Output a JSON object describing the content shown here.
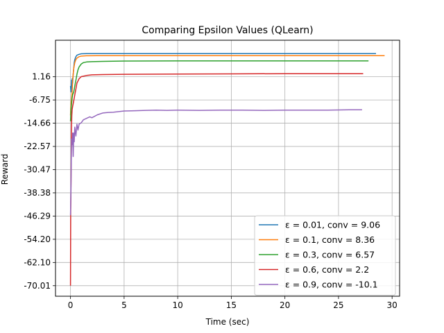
{
  "chart_data": {
    "type": "line",
    "title": "Comparing Epsilon Values (QLearn)",
    "xlabel": "Time (sec)",
    "ylabel": "Reward",
    "xlim": [
      -1.4,
      30.7
    ],
    "ylim": [
      -73.6,
      13.6
    ],
    "x_ticks": [
      0,
      5,
      10,
      15,
      20,
      25,
      30
    ],
    "x_tick_labels": [
      "0",
      "5",
      "10",
      "15",
      "20",
      "25",
      "30"
    ],
    "y_ticks": [
      -70.01,
      -62.1,
      -54.2,
      -46.29,
      -38.38,
      -30.47,
      -22.57,
      -14.66,
      -6.75,
      1.16
    ],
    "y_tick_labels": [
      "-70.01",
      "-62.10",
      "-54.20",
      "-46.29",
      "-38.38",
      "-30.47",
      "-22.57",
      "-14.66",
      "-6.75",
      "1.16"
    ],
    "grid": true,
    "legend_position": "lower-right",
    "series": [
      {
        "name": "ε = 0.01, conv = 9.06",
        "color": "#1f77b4",
        "x": [
          0.0,
          0.05,
          0.1,
          0.12,
          0.15,
          0.2,
          0.25,
          0.3,
          0.35,
          0.4,
          0.5,
          0.6,
          0.8,
          1.0,
          1.5,
          2.5,
          5.0,
          10.0,
          15.0,
          20.0,
          25.0,
          28.5
        ],
        "y": [
          -2.0,
          -4.0,
          0.0,
          -2.0,
          0.5,
          -1.0,
          2.0,
          4.0,
          6.0,
          7.0,
          8.0,
          8.5,
          8.8,
          9.0,
          9.05,
          9.06,
          9.06,
          9.06,
          9.06,
          9.06,
          9.06,
          9.06
        ]
      },
      {
        "name": "ε = 0.1, conv = 8.36",
        "color": "#ff7f0e",
        "x": [
          0.0,
          0.05,
          0.1,
          0.15,
          0.2,
          0.25,
          0.3,
          0.4,
          0.5,
          0.6,
          0.8,
          1.0,
          1.5,
          2.5,
          5.0,
          10.0,
          15.0,
          20.0,
          25.0,
          29.3
        ],
        "y": [
          -12.0,
          -8.0,
          -6.0,
          -4.0,
          0.0,
          2.0,
          4.0,
          6.0,
          7.0,
          7.5,
          8.0,
          8.2,
          8.3,
          8.35,
          8.36,
          8.36,
          8.36,
          8.36,
          8.36,
          8.36
        ]
      },
      {
        "name": "ε = 0.3, conv = 6.57",
        "color": "#2ca02c",
        "x": [
          0.0,
          0.05,
          0.1,
          0.15,
          0.2,
          0.3,
          0.4,
          0.5,
          0.6,
          0.7,
          0.8,
          1.0,
          1.2,
          1.5,
          2.0,
          3.0,
          5.0,
          10.0,
          15.0,
          20.0,
          25.0,
          27.8
        ],
        "y": [
          -14.0,
          -10.0,
          -8.0,
          -6.0,
          -5.0,
          -4.0,
          -2.0,
          0.0,
          2.0,
          3.5,
          4.5,
          5.5,
          6.0,
          6.2,
          6.3,
          6.4,
          6.5,
          6.55,
          6.57,
          6.57,
          6.57,
          6.57
        ]
      },
      {
        "name": "ε = 0.6, conv = 2.2",
        "color": "#d62728",
        "x": [
          0.0,
          0.02,
          0.05,
          0.08,
          0.1,
          0.12,
          0.15,
          0.2,
          0.3,
          0.4,
          0.5,
          0.6,
          0.8,
          1.0,
          1.5,
          2.0,
          3.0,
          5.0,
          10.0,
          15.0,
          20.0,
          25.0,
          27.3
        ],
        "y": [
          -70.0,
          -45.0,
          -35.0,
          -20.0,
          -15.0,
          -12.0,
          -10.0,
          -9.0,
          -7.0,
          -5.0,
          -3.0,
          -1.0,
          0.5,
          1.2,
          1.6,
          1.8,
          1.9,
          2.0,
          2.1,
          2.15,
          2.2,
          2.2,
          2.2
        ]
      },
      {
        "name": "ε = 0.9, conv = -10.1",
        "color": "#9467bd",
        "x": [
          0.0,
          0.03,
          0.06,
          0.1,
          0.15,
          0.2,
          0.25,
          0.3,
          0.35,
          0.4,
          0.5,
          0.6,
          0.7,
          0.8,
          1.0,
          1.2,
          1.5,
          1.8,
          2.0,
          2.5,
          3.0,
          3.5,
          4.0,
          5.0,
          6.0,
          7.0,
          8.0,
          9.0,
          10.0,
          12.0,
          14.0,
          16.0,
          18.0,
          20.0,
          22.0,
          24.0,
          26.0,
          27.2
        ],
        "y": [
          -46.0,
          -40.0,
          -30.0,
          -20.0,
          -22.0,
          -18.0,
          -26.0,
          -18.0,
          -21.0,
          -16.0,
          -19.0,
          -15.0,
          -17.0,
          -15.0,
          -14.5,
          -13.5,
          -13.0,
          -12.5,
          -12.8,
          -11.8,
          -11.2,
          -11.0,
          -10.9,
          -10.5,
          -10.4,
          -10.3,
          -10.2,
          -10.3,
          -10.2,
          -10.3,
          -10.2,
          -10.2,
          -10.3,
          -10.2,
          -10.2,
          -10.2,
          -10.1,
          -10.1
        ]
      }
    ]
  }
}
